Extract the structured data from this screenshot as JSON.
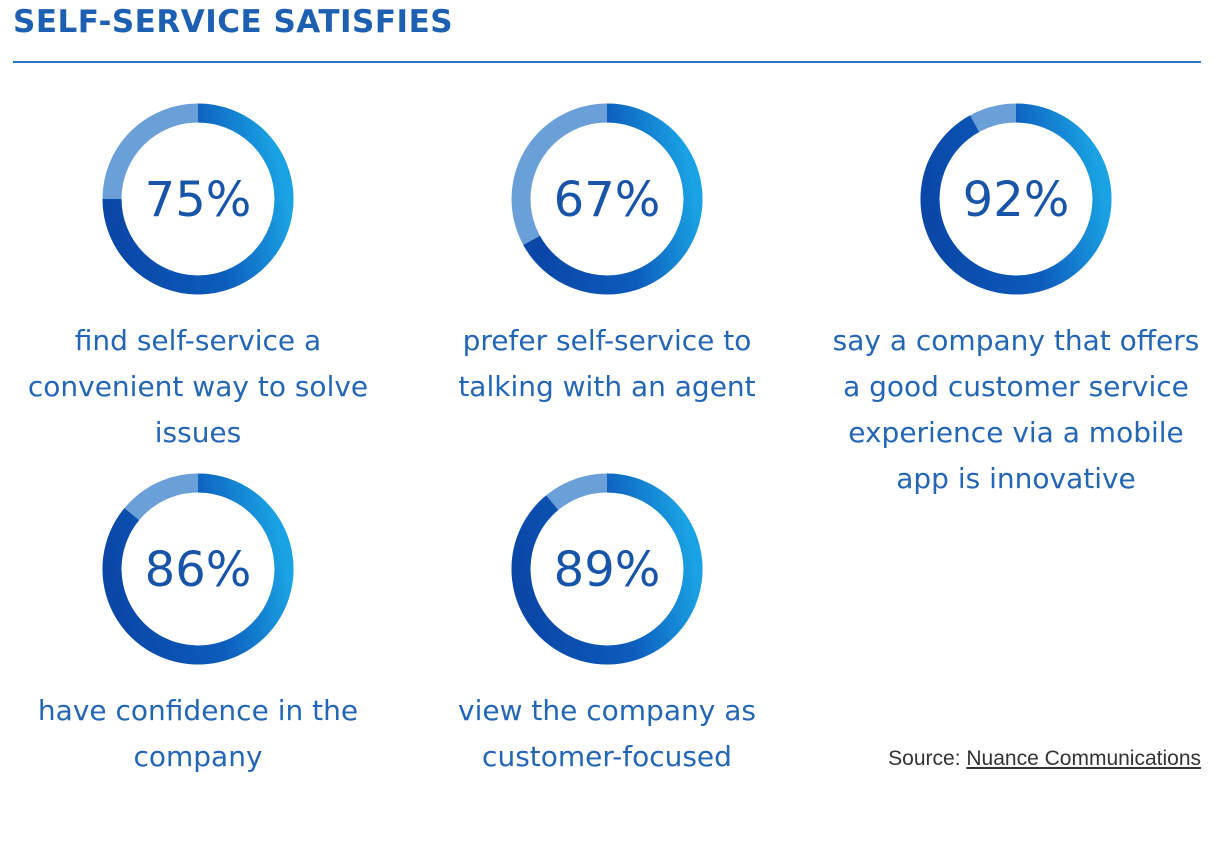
{
  "title": "SELF-SERVICE SATISFIES",
  "source": {
    "label": "Source:",
    "link": "Nuance Communications"
  },
  "colors": {
    "title": "#1d5fb0",
    "rule": "#2a74c4",
    "ring_value_dark": "#0a47a7",
    "ring_value_light": "#1aa3e4",
    "ring_remainder": "#6a9fd7",
    "percent_text": "#1854a8",
    "caption_text": "#2466b6"
  },
  "chart_data": {
    "type": "donut",
    "title": "SELF-SERVICE SATISFIES",
    "unit": "%",
    "items": [
      {
        "value": 75,
        "label": "75%",
        "caption": "find self-service a convenient way to solve issues"
      },
      {
        "value": 67,
        "label": "67%",
        "caption": "prefer self-service to talking with an agent"
      },
      {
        "value": 92,
        "label": "92%",
        "caption": "say a company that offers a good customer service experience via a mobile app is innovative"
      },
      {
        "value": 86,
        "label": "86%",
        "caption": "have confidence in the company"
      },
      {
        "value": 89,
        "label": "89%",
        "caption": "view the company as customer-focused"
      }
    ]
  }
}
